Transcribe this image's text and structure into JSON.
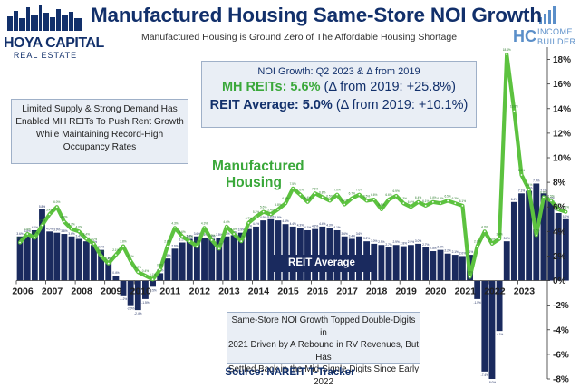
{
  "header": {
    "title": "Manufactured Housing Same-Store NOI Growth",
    "subtitle": "Manufactured Housing is Ground Zero of The Affordable Housing Shortage"
  },
  "logos": {
    "left_line1": "HOYA CAPITAL",
    "left_line2": "REAL ESTATE",
    "right_mark": "HC",
    "right_line1": "INCOME",
    "right_line2": "BUILDER"
  },
  "stats_box": {
    "header": "NOI Growth: Q2 2023 & Δ from 2019",
    "mh_label": "MH REITs: 5.6%",
    "mh_delta": "(Δ from 2019: +25.8%)",
    "reit_label": "REIT Average: 5.0%",
    "reit_delta": "(Δ from 2019: +10.1%)"
  },
  "notes": {
    "left_line1": "Limited Supply & Strong Demand Has",
    "left_line2": "Enabled MH REITs To Push Rent Growth",
    "left_line3": "While Maintaining Record-High",
    "left_line4": "Occupancy Rates",
    "bottom_line1": "Same-Store NOI Growth Topped Double-Digits in",
    "bottom_line2": "2021 Driven by A Rebound in RV Revenues, But Has",
    "bottom_line3": "Settled Back in the Mid-Signle Digits Since Early 2022"
  },
  "labels": {
    "mh_line1": "Manufactured",
    "mh_line2": "Housing",
    "reit_average": "REIT Average"
  },
  "source": "Source: NAREIT T-Tracker",
  "colors": {
    "navy": "#12306b",
    "bar": "#1a2a5e",
    "green": "#3aa83a",
    "box_bg": "#e9eef5"
  },
  "chart_data": {
    "type": "bar",
    "title": "Manufactured Housing Same-Store NOI Growth",
    "xlabel": "",
    "ylabel": "",
    "ylim": [
      -8,
      19
    ],
    "y_ticks": [
      "-8%",
      "-6%",
      "-4%",
      "-2%",
      "0%",
      "2%",
      "4%",
      "6%",
      "8%",
      "10%",
      "12%",
      "14%",
      "16%",
      "18%"
    ],
    "y_tick_values": [
      -8,
      -6,
      -4,
      -2,
      0,
      2,
      4,
      6,
      8,
      10,
      12,
      14,
      16,
      18
    ],
    "x_labels": [
      "2006",
      "2007",
      "2008",
      "2009",
      "2010",
      "2011",
      "2012",
      "2013",
      "2014",
      "2015",
      "2016",
      "2017",
      "2018",
      "2019",
      "2020",
      "2021",
      "2022",
      "2023"
    ],
    "start_year": 2006,
    "quarters_per_year": 4,
    "grid": false,
    "legend": "inline labels",
    "series": [
      {
        "name": "REIT Average",
        "type": "bar",
        "values": [
          3.6,
          3.8,
          4.1,
          5.8,
          4.0,
          3.9,
          3.8,
          3.6,
          3.4,
          3.2,
          2.9,
          2.5,
          1.6,
          0.4,
          -1.2,
          -2.0,
          -2.4,
          -1.5,
          -0.5,
          0.6,
          1.8,
          2.6,
          3.1,
          3.4,
          3.6,
          3.5,
          3.4,
          3.5,
          3.6,
          3.7,
          3.9,
          4.2,
          4.4,
          4.9,
          5.0,
          4.9,
          4.6,
          4.4,
          4.3,
          4.1,
          4.2,
          4.4,
          4.3,
          4.1,
          3.6,
          3.4,
          3.6,
          3.2,
          3.0,
          2.9,
          2.7,
          2.9,
          2.8,
          2.9,
          3.0,
          2.7,
          2.4,
          2.5,
          2.2,
          2.1,
          2.0,
          2.1,
          -1.5,
          -7.4,
          -8.0,
          -4.1,
          3.2,
          6.4,
          7.1,
          7.3,
          7.9,
          7.1,
          6.5,
          5.5,
          5.0
        ],
        "data_labels": [
          "3.6%",
          "3.8%",
          "4.1%",
          "5.8%",
          "4.0%",
          "3.9%",
          "3.8%",
          "3.6%",
          "3.4%",
          "3.2%",
          "2.9%",
          "2.5%",
          "1.6%",
          "0.4%",
          "-1.2%",
          "-2.0%",
          "-2.4%",
          "-1.5%",
          "-0.5%",
          "0.6%",
          "1.8%",
          "2.6%",
          "3.1%",
          "3.4%",
          "3.6%",
          "3.5%",
          "3.4%",
          "3.5%",
          "3.6%",
          "3.7%",
          "3.9%",
          "4.2%",
          "4.4%",
          "4.9%",
          "5.0%",
          "4.9%",
          "4.6%",
          "4.4%",
          "4.3%",
          "4.1%",
          "4.2%",
          "4.4%",
          "4.3%",
          "4.1%",
          "3.6%",
          "3.4%",
          "3.6%",
          "3.2%",
          "3.0%",
          "2.9%",
          "2.7%",
          "2.9%",
          "2.8%",
          "2.9%",
          "3.0%",
          "2.7%",
          "2.4%",
          "2.5%",
          "2.2%",
          "2.1%",
          "2.0%",
          "2.1%",
          "-1.5%",
          "-7.4%",
          "-8.0%",
          "-4.1%",
          "3.2%",
          "6.4%",
          "7.1%",
          "7.3%",
          "7.9%",
          "7.1%",
          "6.5%",
          "5.5%",
          "5.0%"
        ]
      },
      {
        "name": "Manufactured Housing",
        "type": "line",
        "values": [
          3.1,
          3.8,
          3.5,
          4.5,
          5.4,
          6.0,
          4.8,
          4.2,
          4.0,
          3.4,
          3.0,
          2.0,
          1.4,
          2.1,
          2.8,
          1.6,
          0.7,
          0.4,
          0.1,
          0.9,
          2.8,
          4.3,
          3.6,
          3.2,
          2.8,
          4.3,
          3.3,
          2.6,
          4.4,
          3.8,
          3.2,
          4.7,
          5.2,
          5.6,
          5.4,
          5.8,
          6.3,
          7.5,
          7.0,
          6.4,
          7.1,
          6.8,
          6.5,
          7.0,
          6.2,
          6.7,
          7.0,
          6.5,
          6.6,
          5.8,
          6.6,
          6.9,
          6.3,
          6.0,
          6.4,
          6.1,
          6.4,
          6.3,
          6.5,
          6.3,
          6.1,
          0.3,
          2.8,
          4.0,
          3.0,
          3.4,
          18.4,
          13.8,
          8.6,
          7.4,
          3.7,
          6.8,
          6.5,
          5.8,
          5.6
        ],
        "data_labels": [
          "3.1%",
          "3.8%",
          "3.5%",
          "4.5%",
          "5.4%",
          "6.0%",
          "4.8%",
          "4.2%",
          "4.0%",
          "3.4%",
          "3.0%",
          "2.0%",
          "1.4%",
          "2.1%",
          "2.8%",
          "1.6%",
          "0.7%",
          "0.4%",
          "0.1%",
          "0.9%",
          "2.8%",
          "4.3%",
          "3.6%",
          "3.2%",
          "2.8%",
          "4.3%",
          "3.3%",
          "2.6%",
          "4.4%",
          "3.8%",
          "3.2%",
          "4.7%",
          "5.2%",
          "5.6%",
          "5.4%",
          "5.8%",
          "6.3%",
          "7.5%",
          "7.0%",
          "6.4%",
          "7.1%",
          "6.8%",
          "6.5%",
          "7.0%",
          "6.2%",
          "6.7%",
          "7.0%",
          "6.5%",
          "6.6%",
          "5.8%",
          "6.6%",
          "6.9%",
          "6.3%",
          "6.0%",
          "6.4%",
          "6.1%",
          "6.4%",
          "6.3%",
          "6.5%",
          "6.3%",
          "6.1%",
          "0.3%",
          "2.8%",
          "4.0%",
          "3.0%",
          "3.4%",
          "18.4%",
          "13.8%",
          "8.6%",
          "7.4%",
          "3.7%",
          "6.8%",
          "6.5%",
          "5.8%",
          "5.6%"
        ]
      }
    ]
  }
}
